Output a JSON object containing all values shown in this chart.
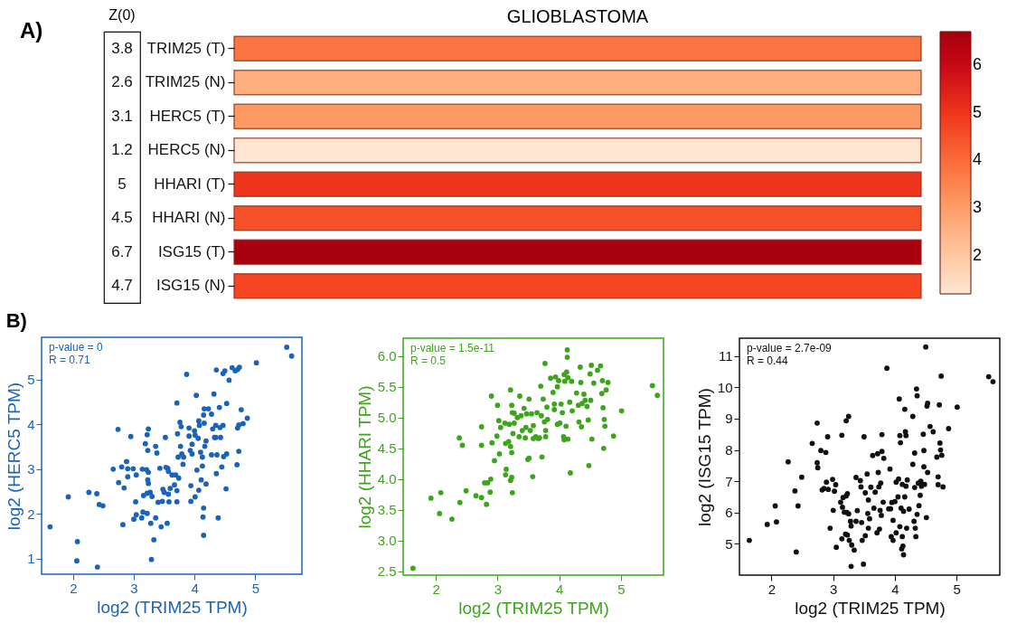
{
  "chart_data": [
    {
      "type": "heatmap",
      "title": "GLIOBLASTOMA",
      "categories": [
        null
      ],
      "y_categories": [
        "TRIM25 (T)",
        "TRIM25 (N)",
        "HERC5 (T)",
        "HERC5 (N)",
        "HHARI (T)",
        "HHARI (N)",
        "ISG15 (T)",
        "ISG15  (N)"
      ],
      "cells": [
        [
          3.8
        ],
        [
          2.6
        ],
        [
          3.1
        ],
        [
          1.2
        ],
        [
          5
        ],
        [
          4.5
        ],
        [
          6.7
        ],
        [
          4.7
        ]
      ],
      "y2_categories": [
        "3.8",
        "2.6",
        "3.1",
        "1.2",
        "5",
        "4.5",
        "6.7",
        "4.7"
      ],
      "clim": [
        1.2,
        6.7
      ],
      "cticks": [
        2,
        3,
        4,
        5,
        6
      ],
      "annotations": [
        "A)",
        "Z(0)"
      ]
    },
    {
      "type": "scatter",
      "title": "B)",
      "xlabel": "log2 (TRIM25 TPM)",
      "ylabel": "log2 (HERC5 TPM)",
      "marker": "circle",
      "grid": false,
      "xlim": [
        1.48,
        5.77
      ],
      "ylim": [
        0.65,
        5.95
      ],
      "xticks": [
        2,
        3,
        4,
        5
      ],
      "yticks": [
        1,
        2,
        3,
        4,
        5
      ],
      "annotations": [
        "p-value = 0",
        "R = 0.71"
      ],
      "series": [
        {
          "color": "#1a63b8",
          "x": [
            1.62,
            1.92,
            2.07,
            2.06,
            2.26,
            2.39,
            2.4,
            2.43,
            2.49,
            2.66,
            2.74,
            2.75,
            2.8,
            2.82,
            2.84,
            2.88,
            2.9,
            2.9,
            2.95,
            2.99,
            3.0,
            3.03,
            3.04,
            3.04,
            3.13,
            3.14,
            3.15,
            3.16,
            3.19,
            3.21,
            3.22,
            3.22,
            3.22,
            3.24,
            3.23,
            3.23,
            3.24,
            3.24,
            3.27,
            3.28,
            3.29,
            3.3,
            3.33,
            3.36,
            3.36,
            3.38,
            3.4,
            3.43,
            3.45,
            3.47,
            3.48,
            3.5,
            3.52,
            3.53,
            3.55,
            3.56,
            3.57,
            3.57,
            3.58,
            3.6,
            3.63,
            3.67,
            3.69,
            3.71,
            3.71,
            3.71,
            3.72,
            3.73,
            3.74,
            3.76,
            3.77,
            3.78,
            3.79,
            3.81,
            3.82,
            3.87,
            3.91,
            3.91,
            3.93,
            3.94,
            3.94,
            3.96,
            3.96,
            4.0,
            4.01,
            4.01,
            4.03,
            4.04,
            4.06,
            4.07,
            4.07,
            4.08,
            4.1,
            4.11,
            4.13,
            4.13,
            4.14,
            4.15,
            4.15,
            4.15,
            4.16,
            4.16,
            4.17,
            4.19,
            4.19,
            4.23,
            4.28,
            4.28,
            4.3,
            4.32,
            4.33,
            4.35,
            4.35,
            4.36,
            4.36,
            4.37,
            4.39,
            4.41,
            4.42,
            4.43,
            4.45,
            4.47,
            4.47,
            4.48,
            4.5,
            4.52,
            4.53,
            4.53,
            4.57,
            4.62,
            4.67,
            4.7,
            4.71,
            4.71,
            4.73,
            4.74,
            4.73,
            4.77,
            4.8,
            4.87,
            5.02,
            5.52,
            5.6
          ],
          "values": [
            1.71,
            2.38,
            1.38,
            0.95,
            2.48,
            2.45,
            0.81,
            2.21,
            2.18,
            3.0,
            3.89,
            2.7,
            3.05,
            1.76,
            2.58,
            3.17,
            3.01,
            2.83,
            3.73,
            3.01,
            1.88,
            2.27,
            2.87,
            1.98,
            1.91,
            3.0,
            2.04,
            2.41,
            3.57,
            2.99,
            3.77,
            2.46,
            2.01,
            3.9,
            3.42,
            2.76,
            2.68,
            2.93,
            2.48,
            1.79,
            0.98,
            2.39,
            1.42,
            3.51,
            1.91,
            3.36,
            2.26,
            3.02,
            1.71,
            2.28,
            2.55,
            2.48,
            3.71,
            3.04,
            1.79,
            3.02,
            2.95,
            2.44,
            2.27,
            2.57,
            2.87,
            2.65,
            2.87,
            4.48,
            2.52,
            2.27,
            3.79,
            3.27,
            2.8,
            4.05,
            3.51,
            3.95,
            3.34,
            3.11,
            3.27,
            5.12,
            3.92,
            3.74,
            3.42,
            2.63,
            2.28,
            3.56,
            3.34,
            3.86,
            3.76,
            2.38,
            4.65,
            2.98,
            3.69,
            4.08,
            2.53,
            3.98,
            3.38,
            2.76,
            3.07,
            3.27,
            1.93,
            2.13,
            1.52,
            4.21,
            4.35,
            4.03,
            3.51,
            2.67,
            3.63,
            4.35,
            4.23,
            3.32,
            3.9,
            4.68,
            3.71,
            3.71,
            3.98,
            5.22,
            2.9,
            3.32,
            1.91,
            4.38,
            3.93,
            3.71,
            3.05,
            5.14,
            3.98,
            3.28,
            5.2,
            2.56,
            4.47,
            3.34,
            4.99,
            5.27,
            5.2,
            3.1,
            3.92,
            5.23,
            3.4,
            5.28,
            3.99,
            4.33,
            4.02,
            4.14,
            5.38,
            5.73,
            5.53
          ]
        }
      ]
    },
    {
      "type": "scatter",
      "xlabel": "log2 (TRIM25 TPM)",
      "ylabel": "log2 (HHARI TPM)",
      "marker": "circle",
      "grid": false,
      "xlim": [
        1.47,
        5.69
      ],
      "ylim": [
        2.44,
        6.29
      ],
      "xticks": [
        2,
        3,
        4,
        5
      ],
      "yticks": [
        2.5,
        {
          "value": 3,
          "label": "3.0"
        },
        3.5,
        {
          "value": 4,
          "label": "4.0"
        },
        4.5,
        {
          "value": 5,
          "label": "5.0"
        },
        5.5,
        {
          "value": 6,
          "label": "6.0"
        }
      ],
      "annotations": [
        "p-value = 1.5e-11",
        "R = 0.5"
      ],
      "series": [
        {
          "color": "#3da51c",
          "x": [
            1.63,
            1.92,
            2.06,
            2.08,
            2.26,
            2.38,
            2.39,
            2.43,
            2.49,
            2.65,
            2.74,
            2.74,
            2.74,
            2.79,
            2.82,
            2.84,
            2.88,
            2.89,
            2.9,
            2.91,
            2.95,
            2.99,
            3.0,
            3.02,
            3.03,
            3.05,
            3.12,
            3.13,
            3.13,
            3.14,
            3.18,
            3.19,
            3.21,
            3.21,
            3.21,
            3.23,
            3.23,
            3.23,
            3.24,
            3.24,
            3.25,
            3.27,
            3.27,
            3.32,
            3.35,
            3.36,
            3.38,
            3.4,
            3.43,
            3.45,
            3.46,
            3.47,
            3.49,
            3.51,
            3.51,
            3.53,
            3.55,
            3.57,
            3.58,
            3.58,
            3.62,
            3.64,
            3.66,
            3.68,
            3.7,
            3.71,
            3.72,
            3.74,
            3.76,
            3.77,
            3.78,
            3.78,
            3.8,
            3.81,
            3.86,
            3.9,
            3.92,
            3.92,
            3.94,
            3.97,
            3.97,
            3.99,
            4.01,
            4.03,
            4.05,
            4.07,
            4.08,
            4.08,
            4.09,
            4.11,
            4.12,
            4.13,
            4.13,
            4.14,
            4.14,
            4.17,
            4.18,
            4.2,
            4.21,
            4.28,
            4.31,
            4.32,
            4.34,
            4.35,
            4.36,
            4.37,
            4.4,
            4.42,
            4.45,
            4.47,
            4.48,
            4.5,
            4.51,
            4.52,
            4.53,
            4.56,
            4.62,
            4.67,
            4.69,
            4.7,
            4.71,
            4.72,
            4.73,
            4.74,
            4.76,
            4.79,
            4.88,
            5.01,
            5.51,
            5.59
          ],
          "values": [
            2.55,
            3.69,
            3.44,
            3.78,
            3.35,
            4.67,
            3.62,
            4.55,
            3.81,
            3.73,
            4.85,
            4.55,
            3.7,
            3.94,
            3.59,
            3.94,
            3.79,
            4.0,
            5.35,
            4.59,
            4.3,
            4.7,
            5.2,
            4.95,
            4.41,
            4.84,
            4.91,
            4.58,
            4.07,
            4.16,
            4.61,
            4.89,
            5.45,
            4.53,
            3.98,
            5.2,
            4.43,
            4.03,
            5.08,
            3.78,
            4.74,
            5.07,
            4.91,
            5.0,
            4.69,
            5.35,
            5.03,
            4.79,
            5.15,
            4.67,
            4.84,
            5.06,
            4.32,
            4.34,
            5.3,
            4.79,
            5.06,
            4.04,
            4.66,
            4.87,
            4.69,
            5.08,
            4.66,
            4.67,
            5.51,
            5.03,
            4.36,
            5.3,
            4.93,
            5.88,
            4.79,
            4.69,
            5.17,
            4.97,
            5.64,
            5.41,
            5.13,
            5.22,
            5.66,
            5.5,
            4.89,
            5.6,
            4.91,
            5.22,
            5.08,
            4.69,
            5.7,
            4.64,
            5.59,
            4.86,
            5.74,
            5.98,
            6.1,
            4.65,
            5.65,
            5.25,
            4.1,
            5.59,
            5.11,
            5.4,
            5.2,
            4.93,
            5.82,
            5.57,
            4.85,
            5.23,
            5.38,
            5.28,
            5.18,
            4.96,
            4.22,
            5.71,
            5.28,
            5.85,
            4.65,
            5.56,
            5.77,
            5.84,
            5.39,
            5.6,
            5.16,
            4.5,
            4.97,
            4.86,
            5.45,
            5.57,
            4.7,
            5.11,
            5.52,
            5.36
          ]
        }
      ]
    },
    {
      "type": "scatter",
      "xlabel": "log2 (TRIM25 TPM)",
      "ylabel": "log2 (ISG15 TPM)",
      "marker": "circle",
      "grid": false,
      "xlim": [
        1.48,
        5.7
      ],
      "ylim": [
        4.0,
        11.57
      ],
      "xticks": [
        2,
        3,
        4,
        5
      ],
      "yticks": [
        5,
        6,
        7,
        8,
        9,
        10,
        11
      ],
      "annotations": [
        "p-value = 2.7e-09",
        "R = 0.44"
      ],
      "series": [
        {
          "color": "#111111",
          "x": [
            1.64,
            1.93,
            2.06,
            2.08,
            2.27,
            2.38,
            2.4,
            2.43,
            2.49,
            2.66,
            2.74,
            2.74,
            2.75,
            2.8,
            2.82,
            2.85,
            2.88,
            2.89,
            2.91,
            2.92,
            2.95,
            2.99,
            3.0,
            3.02,
            3.04,
            3.05,
            3.12,
            3.14,
            3.14,
            3.15,
            3.16,
            3.18,
            3.2,
            3.21,
            3.21,
            3.22,
            3.23,
            3.23,
            3.25,
            3.25,
            3.26,
            3.28,
            3.29,
            3.29,
            3.3,
            3.34,
            3.37,
            3.37,
            3.39,
            3.44,
            3.45,
            3.46,
            3.47,
            3.49,
            3.5,
            3.52,
            3.52,
            3.55,
            3.56,
            3.57,
            3.57,
            3.59,
            3.61,
            3.64,
            3.66,
            3.68,
            3.71,
            3.72,
            3.73,
            3.74,
            3.75,
            3.76,
            3.77,
            3.78,
            3.79,
            3.79,
            3.81,
            3.82,
            3.87,
            3.9,
            3.92,
            3.93,
            3.94,
            3.95,
            3.97,
            3.97,
            4.0,
            4.02,
            4.02,
            4.05,
            4.06,
            4.07,
            4.08,
            4.08,
            4.09,
            4.1,
            4.11,
            4.12,
            4.12,
            4.13,
            4.14,
            4.14,
            4.16,
            4.16,
            4.17,
            4.18,
            4.18,
            4.19,
            4.2,
            4.23,
            4.29,
            4.29,
            4.31,
            4.32,
            4.32,
            4.33,
            4.34,
            4.35,
            4.36,
            4.36,
            4.38,
            4.39,
            4.41,
            4.42,
            4.43,
            4.46,
            4.47,
            4.47,
            4.48,
            4.5,
            4.51,
            4.52,
            4.53,
            4.53,
            4.57,
            4.62,
            4.68,
            4.7,
            4.7,
            4.72,
            4.73,
            4.74,
            4.75,
            4.76,
            4.78,
            4.87,
            5.01,
            5.52,
            5.59
          ],
          "values": [
            5.11,
            5.62,
            6.21,
            5.7,
            7.62,
            6.69,
            4.74,
            6.21,
            7.13,
            8.21,
            8.86,
            7.59,
            7.43,
            7.98,
            6.72,
            6.77,
            7.92,
            6.97,
            8.42,
            6.74,
            5.5,
            7.06,
            6.07,
            6.68,
            6.89,
            4.89,
            6.33,
            8.47,
            5.16,
            6.17,
            6.48,
            6.01,
            5.31,
            8.93,
            6.53,
            6.0,
            6.6,
            5.28,
            9.07,
            5.96,
            5.11,
            5.72,
            4.28,
            5.57,
            4.96,
            4.8,
            5.72,
            7.12,
            6.06,
            7.02,
            6.82,
            5.68,
            5.11,
            4.35,
            8.42,
            5.26,
            6.63,
            7.23,
            5.97,
            5.5,
            6.4,
            5.8,
            6.81,
            7.82,
            6.14,
            6.65,
            5.35,
            7.88,
            7.28,
            6.82,
            5.47,
            6.07,
            6.94,
            5.91,
            7.95,
            8.49,
            6.33,
            7.73,
            10.61,
            6.12,
            7.39,
            6.12,
            5.23,
            6.32,
            5.11,
            5.75,
            6.35,
            6.97,
            5.35,
            6.5,
            7.07,
            9.63,
            8.46,
            5.55,
            8.23,
            6.14,
            4.84,
            5.23,
            6.9,
            4.93,
            4.65,
            6.04,
            9.3,
            6.5,
            8.58,
            8.46,
            6.84,
            5.5,
            7.04,
            6.11,
            7.54,
            9.07,
            5.72,
            7.9,
            6.8,
            5.5,
            5.23,
            9.95,
            5.94,
            9.73,
            6.94,
            6.22,
            6.55,
            7.0,
            6.84,
            8.5,
            7.98,
            7.46,
            6.9,
            11.29,
            5.84,
            9.4,
            9.49,
            7.28,
            8.75,
            8.58,
            7.77,
            7.14,
            6.89,
            9.44,
            8.22,
            8.0,
            10.36,
            7.83,
            6.82,
            8.68,
            9.37,
            10.34,
            10.18
          ]
        }
      ]
    }
  ]
}
